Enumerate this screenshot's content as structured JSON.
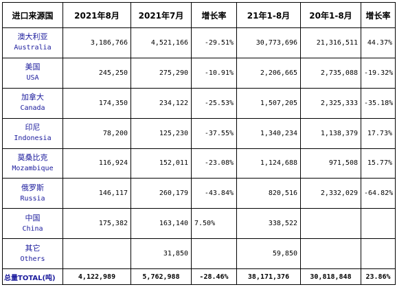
{
  "headers": [
    "进口来源国",
    "2021年8月",
    "2021年7月",
    "增长率",
    "21年1-8月",
    "20年1-8月",
    "增长率"
  ],
  "rows": [
    {
      "cn": "澳大利亚",
      "en": "Australia",
      "cells": [
        "3,186,766",
        "4,521,166",
        "-29.51%",
        "30,773,696",
        "21,316,511",
        "44.37%"
      ]
    },
    {
      "cn": "美国",
      "en": "USA",
      "cells": [
        "245,250",
        "275,290",
        "-10.91%",
        "2,206,665",
        "2,735,088",
        "-19.32%"
      ]
    },
    {
      "cn": "加拿大",
      "en": "Canada",
      "cells": [
        "174,350",
        "234,122",
        "-25.53%",
        "1,507,205",
        "2,325,333",
        "-35.18%"
      ]
    },
    {
      "cn": "印尼",
      "en": "Indonesia",
      "cells": [
        "78,200",
        "125,230",
        "-37.55%",
        "1,340,234",
        "1,138,379",
        "17.73%"
      ]
    },
    {
      "cn": "莫桑比克",
      "en": "Mozambique",
      "cells": [
        "116,924",
        "152,011",
        "-23.08%",
        "1,124,688",
        "971,508",
        "15.77%"
      ]
    },
    {
      "cn": "俄罗斯",
      "en": "Russia",
      "cells": [
        "146,117",
        "260,179",
        "-43.84%",
        "820,516",
        "2,332,029",
        "-64.82%"
      ]
    },
    {
      "cn": "中国",
      "en": "China",
      "cells": [
        "175,382",
        "163,140",
        "7.50%",
        "338,522",
        "",
        ""
      ]
    },
    {
      "cn": "其它",
      "en": "Others",
      "cells": [
        "",
        "31,850",
        "",
        "59,850",
        "",
        ""
      ]
    }
  ],
  "total": {
    "label": "总量TOTAL(吨)",
    "cells": [
      "4,122,989",
      "5,762,988",
      "-28.46%",
      "38,171,376",
      "30,818,848",
      "23.86%"
    ]
  }
}
